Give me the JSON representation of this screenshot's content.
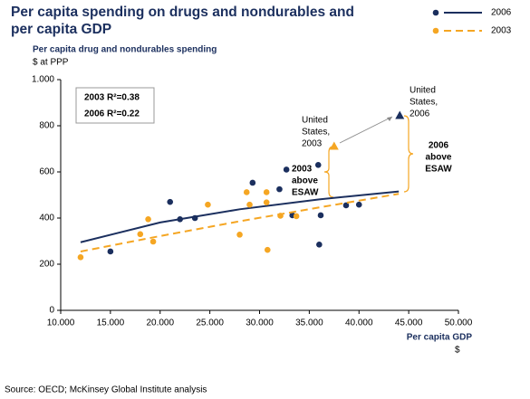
{
  "chart_data": {
    "type": "scatter",
    "title": [
      "Per capita spending on drugs and nondurables and",
      "per capita GDP"
    ],
    "y_label": "Per capita drug and nondurables spending",
    "y_unit": "$ at PPP",
    "x_label": "Per capita GDP",
    "x_unit": "$",
    "source": "Source: OECD; McKinsey Global Institute analysis",
    "xlim": [
      10000,
      50000
    ],
    "xticks": [
      {
        "value": 10000,
        "label": "10.000"
      },
      {
        "value": 15000,
        "label": "15.000"
      },
      {
        "value": 20000,
        "label": "20.000"
      },
      {
        "value": 25000,
        "label": "25.000"
      },
      {
        "value": 30000,
        "label": "30.000"
      },
      {
        "value": 35000,
        "label": "35.000"
      },
      {
        "value": 40000,
        "label": "40.000"
      },
      {
        "value": 45000,
        "label": "45.000"
      },
      {
        "value": 50000,
        "label": "50.000"
      }
    ],
    "ylim": [
      0,
      1000
    ],
    "yticks": [
      0,
      200,
      400,
      600,
      800,
      {
        "value": 1000,
        "label": "1.000"
      }
    ],
    "series": [
      {
        "name": "2006",
        "color": "#1b2f5e",
        "dashed": false,
        "x": [
          15000,
          21000,
          22000,
          23500,
          29300,
          32000,
          32700,
          33300,
          35900,
          36150,
          36000,
          38700,
          40000
        ],
        "values": [
          255,
          470,
          395,
          400,
          553,
          525,
          610,
          412,
          630,
          412,
          285,
          455,
          458
        ],
        "highlight": {
          "x": 44100,
          "value": 845
        },
        "fit_x": [
          12000,
          20000,
          28000,
          36000,
          44000
        ],
        "fit_values": [
          295,
          381,
          438,
          481,
          515
        ]
      },
      {
        "name": "2003",
        "color": "#f5a623",
        "dashed": true,
        "x": [
          12000,
          18000,
          18800,
          19300,
          24800,
          28000,
          28700,
          29000,
          30700,
          30700,
          30800,
          32100,
          33700
        ],
        "values": [
          230,
          330,
          395,
          298,
          458,
          328,
          512,
          458,
          512,
          468,
          262,
          410,
          408
        ],
        "highlight": {
          "x": 37500,
          "value": 712
        },
        "fit_x": [
          12000,
          20000,
          28000,
          36000,
          44000
        ],
        "fit_values": [
          255,
          322,
          386,
          446,
          505
        ]
      }
    ],
    "r_squared": [
      "2003 R²=0.38",
      "2006 R²=0.22"
    ],
    "annotations": [
      [
        "United",
        "States,",
        "2003"
      ],
      [
        "United",
        "States,",
        "2006"
      ],
      [
        "2003",
        "above",
        "ESAW"
      ],
      [
        "2006",
        "above",
        "ESAW"
      ]
    ]
  }
}
